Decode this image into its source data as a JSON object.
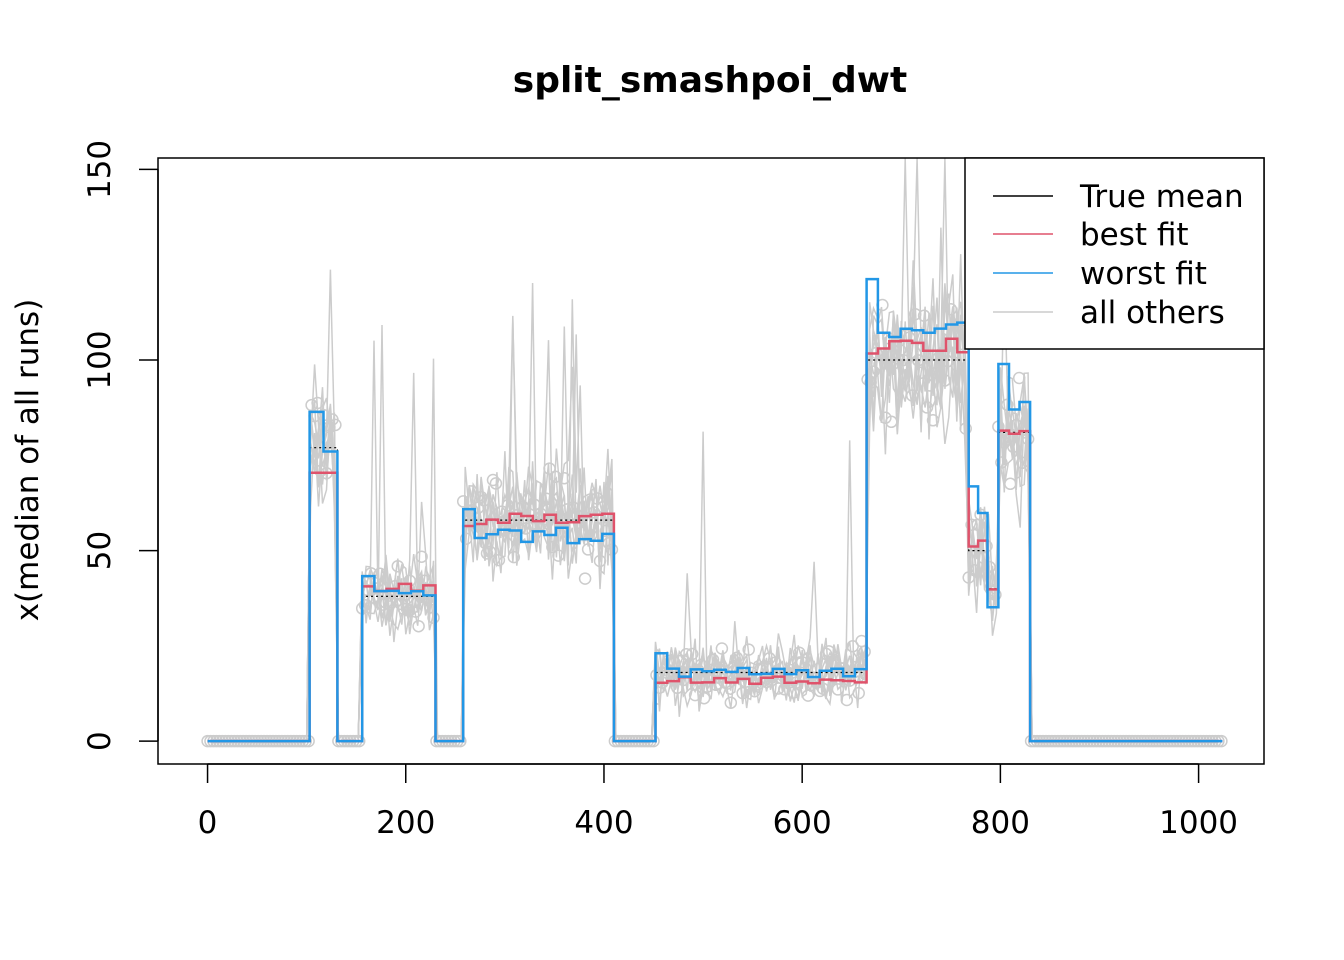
{
  "chart_data": {
    "type": "line",
    "title": "split_smashpoi_dwt",
    "xlabel": "",
    "ylabel": "x(median of all runs)",
    "xlim": [
      -50,
      1066
    ],
    "ylim": [
      -6,
      153
    ],
    "xticks": [
      0,
      200,
      400,
      600,
      800,
      1000
    ],
    "yticks": [
      0,
      50,
      100,
      150
    ],
    "grid": false,
    "legend_position": "top-right",
    "legend": [
      {
        "label": "True mean",
        "color": "#000000"
      },
      {
        "label": "best fit",
        "color": "#DF536B"
      },
      {
        "label": "worst fit",
        "color": "#2297E6"
      },
      {
        "label": "all others",
        "color": "#CCCCCC"
      }
    ],
    "colors": {
      "true_mean": "#000000",
      "best_fit": "#DF536B",
      "worst_fit": "#2297E6",
      "others": "#CCCCCC"
    },
    "segments": [
      {
        "x0": 0,
        "x1": 103,
        "mean": 0,
        "best": 0,
        "worst": 0,
        "noise": 0
      },
      {
        "x0": 103,
        "x1": 131,
        "mean": 77,
        "best": 70,
        "worst": 75,
        "noise": 9
      },
      {
        "x0": 131,
        "x1": 156,
        "mean": 0,
        "best": 0,
        "worst": 0,
        "noise": 0
      },
      {
        "x0": 156,
        "x1": 230,
        "mean": 38,
        "best": 40,
        "worst": 38,
        "noise": 5
      },
      {
        "x0": 230,
        "x1": 258,
        "mean": 0,
        "best": 0,
        "worst": 0,
        "noise": 0
      },
      {
        "x0": 258,
        "x1": 410,
        "mean": 58,
        "best": 58,
        "worst": 54,
        "noise": 7
      },
      {
        "x0": 410,
        "x1": 452,
        "mean": 0,
        "best": 0,
        "worst": 0,
        "noise": 0
      },
      {
        "x0": 452,
        "x1": 665,
        "mean": 18,
        "best": 16,
        "worst": 18,
        "noise": 4
      },
      {
        "x0": 665,
        "x1": 768,
        "mean": 100,
        "best": 104,
        "worst": 108,
        "noise": 10
      },
      {
        "x0": 768,
        "x1": 787,
        "mean": 50,
        "best": 52,
        "worst": 58,
        "noise": 7
      },
      {
        "x0": 787,
        "x1": 798,
        "mean": 40,
        "best": 40,
        "worst": 30,
        "noise": 5
      },
      {
        "x0": 798,
        "x1": 830,
        "mean": 81,
        "best": 82,
        "worst": 88,
        "noise": 8
      },
      {
        "x0": 830,
        "x1": 1024,
        "mean": 0,
        "best": 0,
        "worst": 0,
        "noise": 0
      }
    ]
  }
}
